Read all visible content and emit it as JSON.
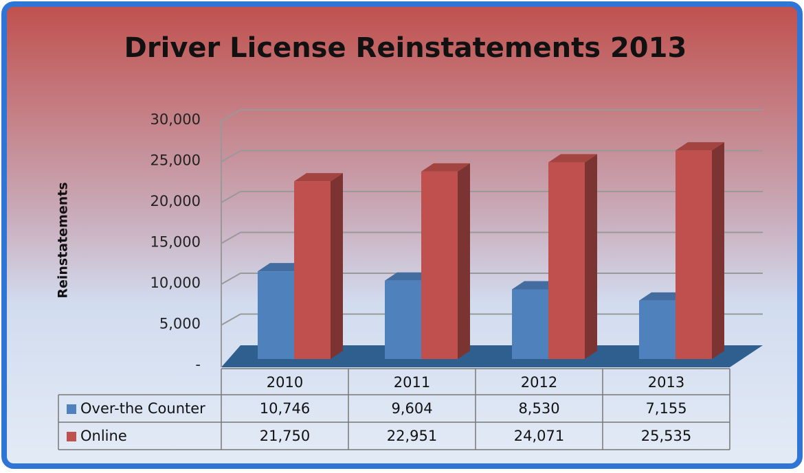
{
  "chart_data": {
    "type": "bar3d",
    "title": "Driver License Reinstatements 2013",
    "y_label": "Reinstatements",
    "categories": [
      "2010",
      "2011",
      "2012",
      "2013"
    ],
    "series": [
      {
        "name": "Over-the Counter",
        "color": "#4f81bd",
        "values": [
          10746,
          9604,
          8530,
          7155
        ],
        "value_labels": [
          "10,746",
          "9,604",
          "8,530",
          "7,155"
        ]
      },
      {
        "name": "Online",
        "color": "#c0504d",
        "values": [
          21750,
          22951,
          24071,
          25535
        ],
        "value_labels": [
          "21,750",
          "22,951",
          "24,071",
          "25,535"
        ]
      }
    ],
    "ylim": [
      0,
      30000
    ],
    "yticks": [
      {
        "value": 0,
        "label": "-"
      },
      {
        "value": 5000,
        "label": "5,000"
      },
      {
        "value": 10000,
        "label": "10,000"
      },
      {
        "value": 15000,
        "label": "15,000"
      },
      {
        "value": 20000,
        "label": "20,000"
      },
      {
        "value": 25000,
        "label": "25,000"
      },
      {
        "value": 30000,
        "label": "30,000"
      }
    ],
    "grid": true
  }
}
